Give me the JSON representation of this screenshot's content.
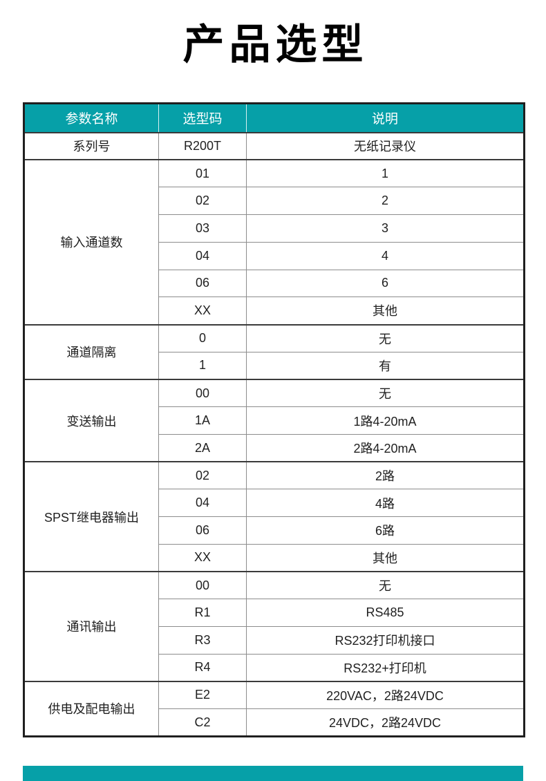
{
  "page": {
    "title": "产品选型",
    "background": "#ffffff"
  },
  "colors": {
    "accent_teal": "#06A0A8",
    "header_text": "#ffffff",
    "body_text": "#1f1f1f",
    "grid_line": "#8c8c8c",
    "group_separator": "#3a3a3a",
    "outer_border": "#1f1f1f"
  },
  "table": {
    "headers": [
      "参数名称",
      "选型码",
      "说明"
    ],
    "groups": [
      {
        "name": "系列号",
        "rows": [
          {
            "code": "R200T",
            "desc": "无纸记录仪"
          }
        ]
      },
      {
        "name": "输入通道数",
        "rows": [
          {
            "code": "01",
            "desc": "1"
          },
          {
            "code": "02",
            "desc": "2"
          },
          {
            "code": "03",
            "desc": "3"
          },
          {
            "code": "04",
            "desc": "4"
          },
          {
            "code": "06",
            "desc": "6"
          },
          {
            "code": "XX",
            "desc": "其他"
          }
        ]
      },
      {
        "name": "通道隔离",
        "rows": [
          {
            "code": "0",
            "desc": "无"
          },
          {
            "code": "1",
            "desc": "有"
          }
        ]
      },
      {
        "name": "变送输出",
        "rows": [
          {
            "code": "00",
            "desc": "无"
          },
          {
            "code": "1A",
            "desc": "1路4-20mA"
          },
          {
            "code": "2A",
            "desc": "2路4-20mA"
          }
        ]
      },
      {
        "name": "SPST继电器输出",
        "rows": [
          {
            "code": "02",
            "desc": "2路"
          },
          {
            "code": "04",
            "desc": "4路"
          },
          {
            "code": "06",
            "desc": "6路"
          },
          {
            "code": "XX",
            "desc": "其他"
          }
        ]
      },
      {
        "name": "通讯输出",
        "rows": [
          {
            "code": "00",
            "desc": "无"
          },
          {
            "code": "R1",
            "desc": "RS485"
          },
          {
            "code": "R3",
            "desc": "RS232打印机接口"
          },
          {
            "code": "R4",
            "desc": "RS232+打印机"
          }
        ]
      },
      {
        "name": "供电及配电输出",
        "rows": [
          {
            "code": "E2",
            "desc": "220VAC，2路24VDC"
          },
          {
            "code": "C2",
            "desc": "24VDC，2路24VDC"
          }
        ]
      }
    ]
  }
}
